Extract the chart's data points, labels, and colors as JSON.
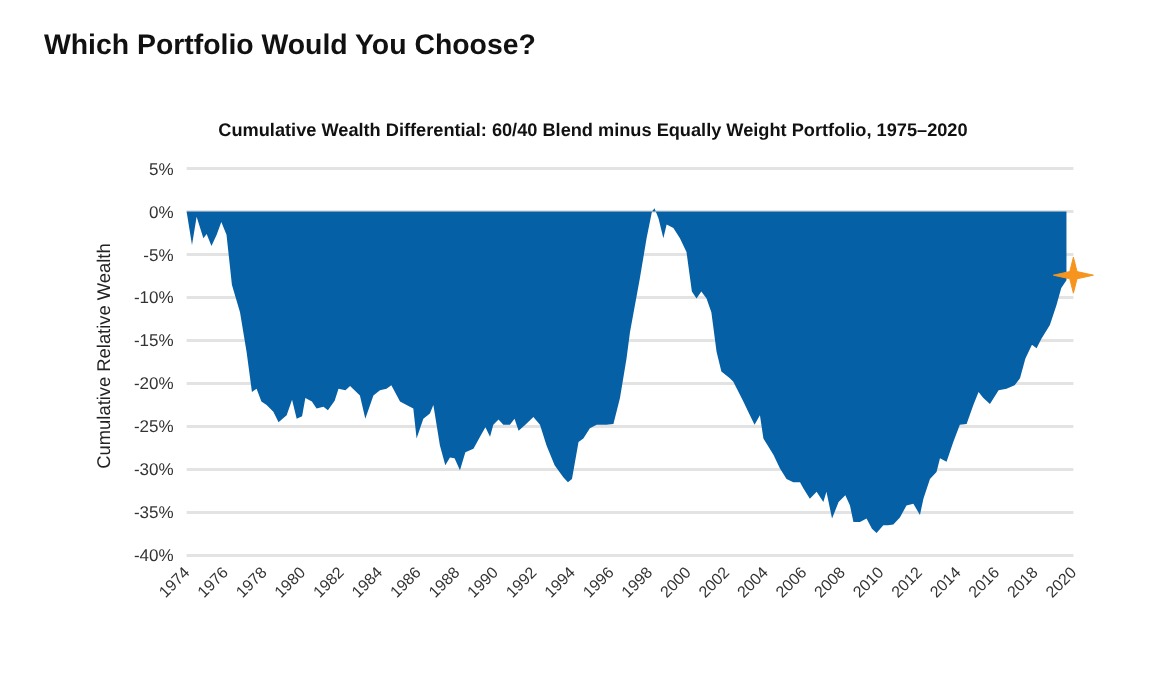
{
  "chart_data": {
    "type": "area",
    "title": "Which Portfolio Would You Choose?",
    "subtitle": "Cumulative Wealth Differential: 60/40 Blend minus Equally Weight Portfolio, 1975–2020",
    "ylabel": "Cumulative Relative Wealth",
    "xlim": [
      1974,
      2020
    ],
    "xticks": [
      1974,
      1976,
      1978,
      1980,
      1982,
      1984,
      1986,
      1988,
      1990,
      1992,
      1994,
      1996,
      1998,
      2000,
      2002,
      2004,
      2006,
      2008,
      2010,
      2012,
      2014,
      2016,
      2018,
      2020
    ],
    "ylim": [
      -40,
      5
    ],
    "yticks": [
      {
        "value": 5,
        "label": "5%"
      },
      {
        "value": 0,
        "label": "0%"
      },
      {
        "value": -5,
        "label": "-5%"
      },
      {
        "value": -10,
        "label": "-10%"
      },
      {
        "value": -15,
        "label": "-15%"
      },
      {
        "value": -20,
        "label": "-20%"
      },
      {
        "value": -25,
        "label": "-25%"
      },
      {
        "value": -30,
        "label": "-30%"
      },
      {
        "value": -35,
        "label": "-35%"
      },
      {
        "value": -40,
        "label": "-40%"
      }
    ],
    "grid": "y",
    "series": [
      {
        "color": "#0660a6",
        "x": [
          1974.0,
          1974.28,
          1974.52,
          1974.87,
          1975.04,
          1975.29,
          1975.56,
          1975.8,
          1976.07,
          1976.35,
          1976.77,
          1977.11,
          1977.39,
          1977.63,
          1977.88,
          1978.15,
          1978.5,
          1978.77,
          1979.19,
          1979.47,
          1979.71,
          1979.99,
          1980.16,
          1980.5,
          1980.74,
          1981.1,
          1981.33,
          1981.68,
          1981.88,
          1982.24,
          1982.48,
          1982.71,
          1982.99,
          1983.27,
          1983.69,
          1984.03,
          1984.37,
          1984.62,
          1985.07,
          1985.41,
          1985.76,
          1985.93,
          1986.28,
          1986.62,
          1986.8,
          1987.14,
          1987.42,
          1987.66,
          1987.9,
          1988.18,
          1988.46,
          1988.88,
          1989.22,
          1989.5,
          1989.74,
          1989.91,
          1990.18,
          1990.43,
          1990.77,
          1991.01,
          1991.22,
          1991.57,
          1991.99,
          1992.33,
          1992.67,
          1993.09,
          1993.54,
          1993.78,
          1993.99,
          1994.33,
          1994.58,
          1994.92,
          1995.27,
          1995.78,
          1996.14,
          1996.48,
          1996.82,
          1997.0,
          1997.51,
          1997.86,
          1998.14,
          1998.27,
          1998.48,
          1998.73,
          1998.9,
          1999.25,
          1999.59,
          1999.93,
          2000.21,
          2000.45,
          2000.7,
          2000.97,
          2001.22,
          2001.49,
          2001.74,
          2002.18,
          2002.36,
          2002.88,
          2003.22,
          2003.46,
          2003.74,
          2003.92,
          2004.44,
          2004.78,
          2005.12,
          2005.47,
          2005.82,
          2005.99,
          2006.33,
          2006.68,
          2007.03,
          2007.19,
          2007.48,
          2007.82,
          2008.17,
          2008.41,
          2008.59,
          2008.93,
          2009.27,
          2009.55,
          2009.79,
          2010.14,
          2010.38,
          2010.66,
          2011.0,
          2011.34,
          2011.7,
          2012.04,
          2012.22,
          2012.56,
          2012.9,
          2013.08,
          2013.42,
          2013.77,
          2014.11,
          2014.46,
          2014.81,
          2015.08,
          2015.33,
          2015.67,
          2016.12,
          2016.53,
          2016.95,
          2017.23,
          2017.51,
          2017.85,
          2018.09,
          2018.34,
          2018.78,
          2019.12,
          2019.37,
          2019.64
        ],
        "values": [
          0,
          -3.9,
          -0.6,
          -3.1,
          -2.6,
          -4.0,
          -2.7,
          -1.2,
          -2.7,
          -8.5,
          -11.7,
          -16.3,
          -21.0,
          -20.6,
          -22.1,
          -22.5,
          -23.3,
          -24.5,
          -23.7,
          -21.9,
          -24.1,
          -23.8,
          -21.7,
          -22.1,
          -22.9,
          -22.7,
          -23.1,
          -22.0,
          -20.6,
          -20.8,
          -20.3,
          -20.8,
          -21.4,
          -24.1,
          -21.4,
          -20.8,
          -20.6,
          -20.2,
          -22.1,
          -22.5,
          -22.9,
          -26.4,
          -24.1,
          -23.5,
          -22.5,
          -27.2,
          -29.5,
          -28.6,
          -28.7,
          -30.1,
          -28.0,
          -27.6,
          -26.2,
          -25.1,
          -26.2,
          -24.8,
          -24.2,
          -24.8,
          -24.8,
          -24.1,
          -25.5,
          -24.8,
          -23.9,
          -24.8,
          -27.2,
          -29.5,
          -30.9,
          -31.5,
          -31.1,
          -26.8,
          -26.4,
          -25.2,
          -24.8,
          -24.8,
          -24.7,
          -21.7,
          -17.1,
          -14.0,
          -7.8,
          -3.1,
          0,
          0.4,
          -0.8,
          -3.1,
          -1.5,
          -1.9,
          -3.1,
          -4.7,
          -9.3,
          -10.1,
          -9.3,
          -10.1,
          -11.7,
          -16.3,
          -18.6,
          -19.4,
          -19.8,
          -22.1,
          -23.7,
          -24.8,
          -23.7,
          -26.4,
          -28.3,
          -29.9,
          -31.1,
          -31.5,
          -31.5,
          -32.2,
          -33.4,
          -32.6,
          -33.8,
          -32.6,
          -35.7,
          -33.8,
          -33.0,
          -34.2,
          -36.1,
          -36.1,
          -35.7,
          -36.9,
          -37.4,
          -36.5,
          -36.5,
          -36.4,
          -35.6,
          -34.2,
          -34.0,
          -35.3,
          -33.4,
          -31.1,
          -30.3,
          -28.7,
          -29.1,
          -26.8,
          -24.8,
          -24.7,
          -22.5,
          -21.0,
          -21.7,
          -22.4,
          -20.8,
          -20.6,
          -20.2,
          -19.4,
          -17.1,
          -15.5,
          -15.9,
          -14.8,
          -13.2,
          -10.9,
          -8.9,
          -8.0
        ]
      },
      {
        "type": "scatter",
        "color": "#f7941d",
        "marker": "star",
        "x": [
          2020
        ],
        "values": [
          -7.4
        ]
      }
    ]
  }
}
